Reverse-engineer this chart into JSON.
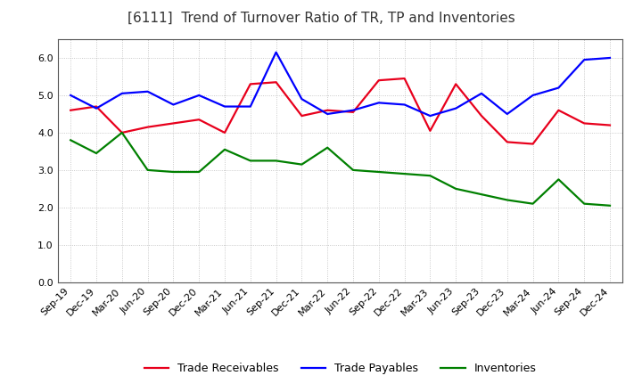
{
  "title": "[6111]  Trend of Turnover Ratio of TR, TP and Inventories",
  "xlabel": "",
  "ylabel": "",
  "ylim": [
    0.0,
    6.5
  ],
  "yticks": [
    0.0,
    1.0,
    2.0,
    3.0,
    4.0,
    5.0,
    6.0
  ],
  "x_labels": [
    "Sep-19",
    "Dec-19",
    "Mar-20",
    "Jun-20",
    "Sep-20",
    "Dec-20",
    "Mar-21",
    "Jun-21",
    "Sep-21",
    "Dec-21",
    "Mar-22",
    "Jun-22",
    "Sep-22",
    "Dec-22",
    "Mar-23",
    "Jun-23",
    "Sep-23",
    "Dec-23",
    "Mar-24",
    "Jun-24",
    "Sep-24",
    "Dec-24"
  ],
  "trade_receivables": [
    4.6,
    4.7,
    4.0,
    4.15,
    4.25,
    4.35,
    4.0,
    5.3,
    5.35,
    4.45,
    4.6,
    4.55,
    5.4,
    5.45,
    4.05,
    5.3,
    4.45,
    3.75,
    3.7,
    4.6,
    4.25,
    4.2
  ],
  "trade_payables": [
    5.0,
    4.65,
    5.05,
    5.1,
    4.75,
    5.0,
    4.7,
    4.7,
    6.15,
    4.9,
    4.5,
    4.6,
    4.8,
    4.75,
    4.45,
    4.65,
    5.05,
    4.5,
    5.0,
    5.2,
    5.95,
    6.0
  ],
  "inventories": [
    3.8,
    3.45,
    4.0,
    3.0,
    2.95,
    2.95,
    3.55,
    3.25,
    3.25,
    3.15,
    3.6,
    3.0,
    2.95,
    2.9,
    2.85,
    2.5,
    2.35,
    2.2,
    2.1,
    2.75,
    2.1,
    2.05
  ],
  "color_tr": "#e8001c",
  "color_tp": "#0000ff",
  "color_inv": "#008000",
  "legend_labels": [
    "Trade Receivables",
    "Trade Payables",
    "Inventories"
  ],
  "title_fontsize": 11,
  "tick_fontsize": 8,
  "legend_fontsize": 9,
  "line_width": 1.6,
  "background_color": "#ffffff",
  "grid_color": "#aaaaaa",
  "grid_style": ":"
}
